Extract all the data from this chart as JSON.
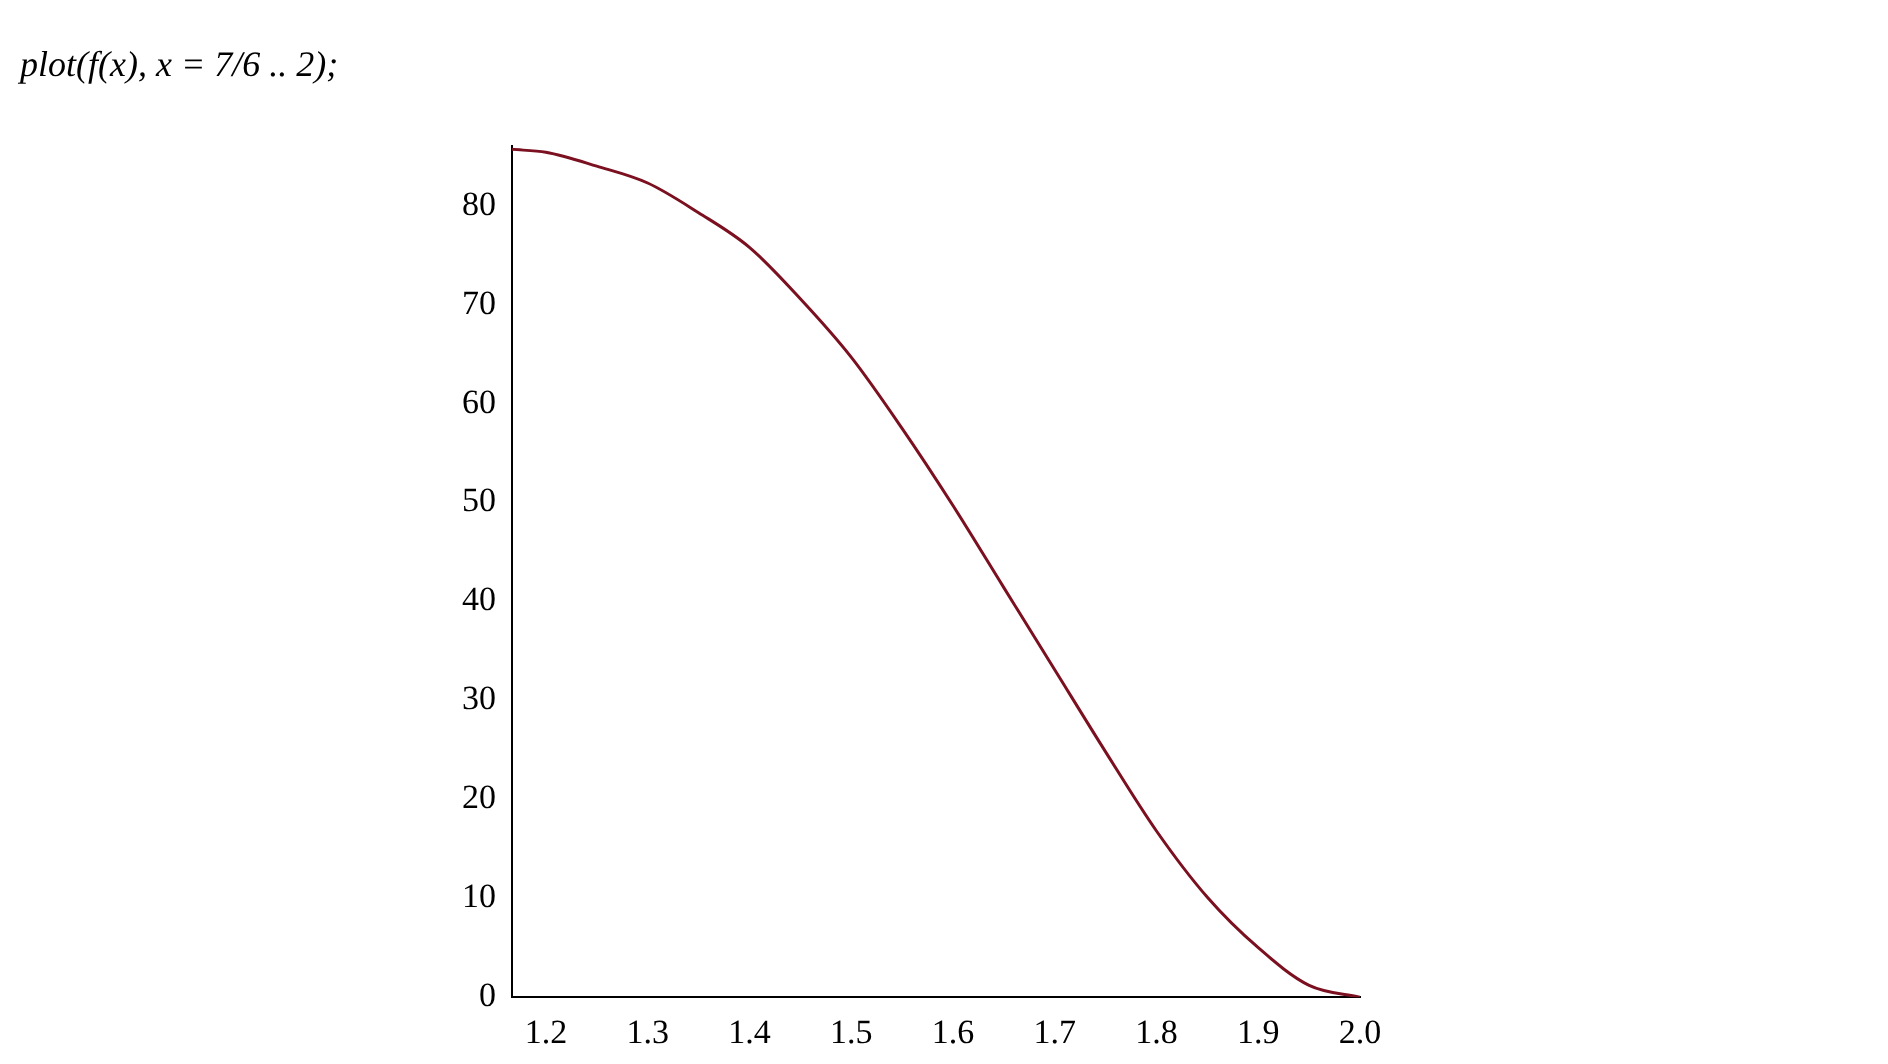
{
  "chart_data": {
    "type": "line",
    "title": "plot(f(x), x = 7/6 .. 2);",
    "x": [
      1.1667,
      1.2,
      1.25,
      1.3,
      1.35,
      1.4,
      1.45,
      1.5,
      1.55,
      1.6,
      1.65,
      1.7,
      1.75,
      1.8,
      1.85,
      1.9,
      1.95,
      2.0
    ],
    "series": [
      {
        "color": "#7b1020",
        "values": [
          85.7,
          85.4,
          84.0,
          82.3,
          79.3,
          75.8,
          70.6,
          64.7,
          57.5,
          49.7,
          41.4,
          33.1,
          24.8,
          16.8,
          10.1,
          5.0,
          1.2,
          0
        ]
      }
    ],
    "xlim": [
      1.1667,
      2
    ],
    "xticks": [
      {
        "value": 1.2,
        "label": "1.2"
      },
      {
        "value": 1.3,
        "label": "1.3"
      },
      {
        "value": 1.4,
        "label": "1.4"
      },
      {
        "value": 1.5,
        "label": "1.5"
      },
      {
        "value": 1.6,
        "label": "1.6"
      },
      {
        "value": 1.7,
        "label": "1.7"
      },
      {
        "value": 1.8,
        "label": "1.8"
      },
      {
        "value": 1.9,
        "label": "1.9"
      },
      {
        "value": 2,
        "label": "2.0"
      }
    ],
    "ylim": [
      0,
      86
    ],
    "yticks": [
      0,
      10,
      20,
      30,
      40,
      50,
      60,
      70,
      80
    ],
    "grid": false,
    "legend": false,
    "marker": "none",
    "line_style": "solid"
  }
}
